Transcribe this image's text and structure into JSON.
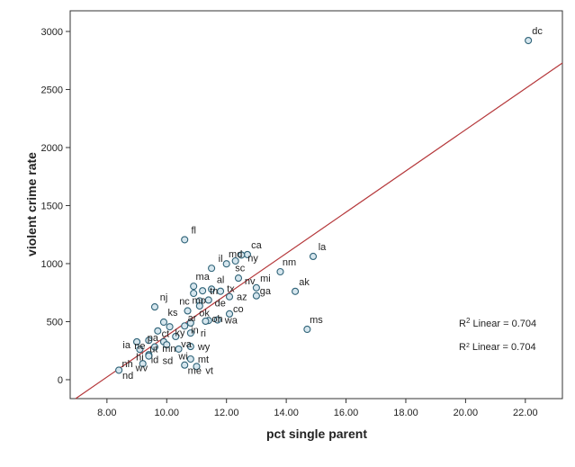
{
  "chart_data": {
    "type": "scatter",
    "xlabel": "pct single parent",
    "ylabel": "violent crime rate",
    "xlim": [
      6.77,
      23.24
    ],
    "ylim": [
      -163,
      3178
    ],
    "xticks": [
      "8.00",
      "10.00",
      "12.00",
      "14.00",
      "16.00",
      "18.00",
      "20.00",
      "22.00"
    ],
    "xtick_values": [
      8,
      10,
      12,
      14,
      16,
      18,
      20,
      22
    ],
    "yticks": [
      "0",
      "500",
      "1000",
      "1500",
      "2000",
      "2500",
      "3000"
    ],
    "ytick_values": [
      0,
      500,
      1000,
      1500,
      2000,
      2500,
      3000
    ],
    "grid": false,
    "fit_line": {
      "type": "linear",
      "intercept": -1397,
      "slope": 177.5,
      "color": "#b5373a"
    },
    "annotations": [
      {
        "prefix": "R",
        "sup": "2",
        "text": " Linear = 0.704"
      },
      {
        "prefix": "R",
        "sup": "2",
        "text": " Linear = 0.704"
      }
    ],
    "marker_stroke": "#2f6378",
    "marker_fill": "#d6e6ee",
    "points": [
      {
        "label": "dc",
        "x": 22.1,
        "y": 2922
      },
      {
        "label": "fl",
        "x": 10.6,
        "y": 1206
      },
      {
        "label": "ca",
        "x": 12.7,
        "y": 1078
      },
      {
        "label": "ny",
        "x": 12.5,
        "y": 1074
      },
      {
        "label": "la",
        "x": 14.9,
        "y": 1062
      },
      {
        "label": "sc",
        "x": 12.3,
        "y": 1023
      },
      {
        "label": "md",
        "x": 12.0,
        "y": 998
      },
      {
        "label": "il",
        "x": 11.5,
        "y": 960
      },
      {
        "label": "nm",
        "x": 13.8,
        "y": 930
      },
      {
        "label": "nv",
        "x": 12.4,
        "y": 875
      },
      {
        "label": "ma",
        "x": 10.9,
        "y": 805
      },
      {
        "label": "mi",
        "x": 13.0,
        "y": 792
      },
      {
        "label": "al",
        "x": 11.5,
        "y": 780
      },
      {
        "label": "tn",
        "x": 11.2,
        "y": 766
      },
      {
        "label": "tx",
        "x": 11.8,
        "y": 762
      },
      {
        "label": "ak",
        "x": 14.3,
        "y": 761
      },
      {
        "label": "mo",
        "x": 10.9,
        "y": 744
      },
      {
        "label": "ga",
        "x": 13.0,
        "y": 723
      },
      {
        "label": "az",
        "x": 12.1,
        "y": 715
      },
      {
        "label": "de",
        "x": 11.4,
        "y": 686
      },
      {
        "label": "nc",
        "x": 11.1,
        "y": 679
      },
      {
        "label": "ok",
        "x": 11.1,
        "y": 635
      },
      {
        "label": "nj",
        "x": 9.6,
        "y": 627
      },
      {
        "label": "ar",
        "x": 10.7,
        "y": 593
      },
      {
        "label": "co",
        "x": 12.1,
        "y": 567
      },
      {
        "label": "wa",
        "x": 11.7,
        "y": 515
      },
      {
        "label": "",
        "x": 11.4,
        "y": 510
      },
      {
        "label": "oh",
        "x": 11.3,
        "y": 504
      },
      {
        "label": "ks",
        "x": 9.9,
        "y": 496
      },
      {
        "label": "in",
        "x": 10.8,
        "y": 489
      },
      {
        "label": "ky",
        "x": 10.6,
        "y": 463
      },
      {
        "label": "ct",
        "x": 10.1,
        "y": 456
      },
      {
        "label": "ms",
        "x": 14.7,
        "y": 434
      },
      {
        "label": "pa",
        "x": 9.7,
        "y": 420
      },
      {
        "label": "ri",
        "x": 10.8,
        "y": 402
      },
      {
        "label": "va",
        "x": 10.3,
        "y": 372
      },
      {
        "label": "ne",
        "x": 9.4,
        "y": 339
      },
      {
        "label": "mn",
        "x": 9.9,
        "y": 327
      },
      {
        "label": "ia",
        "x": 9.0,
        "y": 326
      },
      {
        "label": "ut",
        "x": 10.0,
        "y": 301
      },
      {
        "label": "wy",
        "x": 10.8,
        "y": 286
      },
      {
        "label": "id",
        "x": 9.6,
        "y": 282
      },
      {
        "label": "wi",
        "x": 10.4,
        "y": 264
      },
      {
        "label": "hi",
        "x": 9.1,
        "y": 261
      },
      {
        "label": "sd",
        "x": 9.4,
        "y": 215
      },
      {
        "label": "wv",
        "x": 9.4,
        "y": 204
      },
      {
        "label": "mt",
        "x": 10.8,
        "y": 178
      },
      {
        "label": "nh",
        "x": 9.2,
        "y": 138
      },
      {
        "label": "me",
        "x": 10.6,
        "y": 126
      },
      {
        "label": "vt",
        "x": 11.0,
        "y": 114
      },
      {
        "label": "nd",
        "x": 8.4,
        "y": 82
      }
    ]
  }
}
